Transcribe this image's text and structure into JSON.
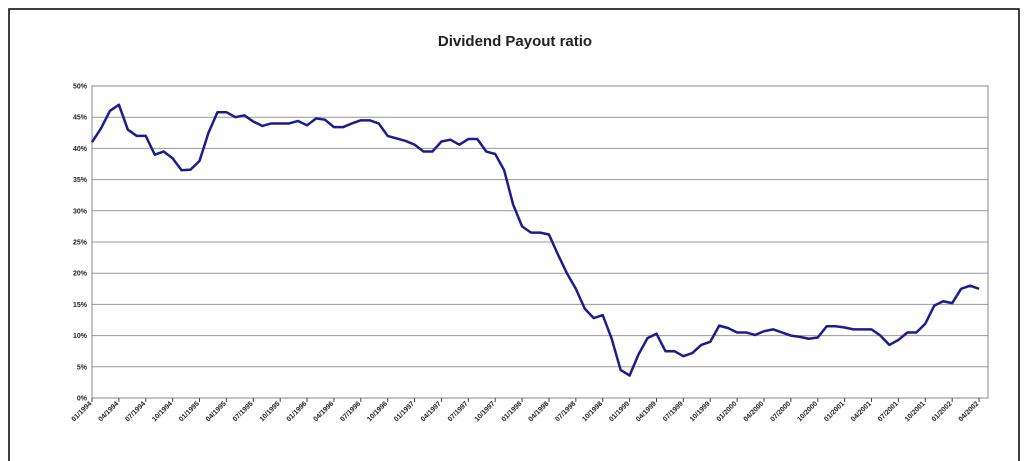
{
  "chart_data": {
    "type": "line",
    "title": "Dividend Payout ratio",
    "categories": [
      "01/1994",
      null,
      null,
      "04/1994",
      null,
      null,
      "07/1994",
      null,
      null,
      "10/1994",
      null,
      null,
      "01/1995",
      null,
      null,
      "04/1995",
      null,
      null,
      "07/1995",
      null,
      null,
      "10/1995",
      null,
      null,
      "01/1996",
      null,
      null,
      "04/1996",
      null,
      null,
      "07/1996",
      null,
      null,
      "10/1996",
      null,
      null,
      "01/1997",
      null,
      null,
      "04/1997",
      null,
      null,
      "07/1997",
      null,
      null,
      "10/1997",
      null,
      null,
      "01/1998",
      null,
      null,
      "04/1998",
      null,
      null,
      "07/1998",
      null,
      null,
      "10/1998",
      null,
      null,
      "01/1999",
      null,
      null,
      "04/1999",
      null,
      null,
      "07/1999",
      null,
      null,
      "10/1999",
      null,
      null,
      "01/2000",
      null,
      null,
      "04/2000",
      null,
      null,
      "07/2000",
      null,
      null,
      "10/2000",
      null,
      null,
      "01/2001",
      null,
      null,
      "04/2001",
      null,
      null,
      "07/2001",
      null,
      null,
      "10/2001",
      null,
      null,
      "01/2002",
      null,
      null,
      "04/2002"
    ],
    "series": [
      {
        "color": "#1c1c8c",
        "values": [
          41,
          43.2,
          46,
          47,
          43,
          42,
          42,
          39,
          39.5,
          38.4,
          36.5,
          36.6,
          38,
          42.5,
          45.8,
          45.8,
          45,
          45.3,
          44.3,
          43.6,
          44,
          44,
          44,
          44.4,
          43.7,
          44.8,
          44.6,
          43.4,
          43.4,
          44,
          44.5,
          44.5,
          44,
          42,
          41.6,
          41.2,
          40.6,
          39.5,
          39.5,
          41.1,
          41.4,
          40.6,
          41.5,
          41.5,
          39.5,
          39.1,
          36.5,
          31,
          27.5,
          26.5,
          26.5,
          26.2,
          23,
          20,
          17.5,
          14.3,
          12.8,
          13.3,
          9.5,
          4.5,
          3.6,
          7,
          9.6,
          10.3,
          7.5,
          7.5,
          6.7,
          7.2,
          8.5,
          9,
          11.6,
          11.2,
          10.5,
          10.5,
          10.1,
          10.7,
          11,
          10.5,
          10,
          9.8,
          9.5,
          9.7,
          11.5,
          11.5,
          11.3,
          11,
          11,
          11,
          10,
          8.5,
          9.3,
          10.5,
          10.5,
          11.9,
          14.8,
          15.5,
          15.2,
          17.5,
          18,
          17.5
        ]
      }
    ],
    "ylim": [
      0,
      50
    ],
    "yticks": [
      {
        "value": 0,
        "label": "0%"
      },
      {
        "value": 5,
        "label": "5%"
      },
      {
        "value": 10,
        "label": "10%"
      },
      {
        "value": 15,
        "label": "15%"
      },
      {
        "value": 20,
        "label": "20%"
      },
      {
        "value": 25,
        "label": "25%"
      },
      {
        "value": 30,
        "label": "30%"
      },
      {
        "value": 35,
        "label": "35%"
      },
      {
        "value": 40,
        "label": "40%"
      },
      {
        "value": 45,
        "label": "45%"
      },
      {
        "value": 50,
        "label": "50%"
      }
    ],
    "grid": true
  }
}
